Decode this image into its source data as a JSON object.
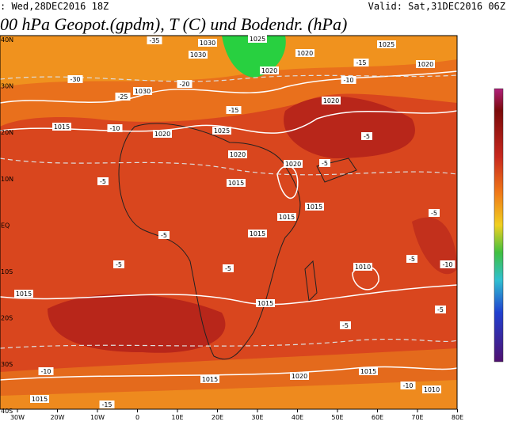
{
  "header": {
    "left": ": Wed,28DEC2016 18Z",
    "right": "Valid: Sat,31DEC2016 06Z"
  },
  "title": "00 hPa Geopot.(gpdm), T (C) und Bodendr. (hPa)",
  "lon_labels": [
    "30W",
    "20W",
    "10W",
    "0",
    "10E",
    "20E",
    "30E",
    "40E",
    "50E",
    "60E",
    "70E",
    "80E"
  ],
  "lat_labels": [
    "40N",
    "30N",
    "20N",
    "10N",
    "EQ",
    "10S",
    "20S",
    "30S",
    "40S"
  ],
  "contour_labels": [
    "1030",
    "1025",
    "1030",
    "1020",
    "1020",
    "1025",
    "1020",
    "1030",
    "1020",
    "1025",
    "1020",
    "1015",
    "1020",
    "1020",
    "1015",
    "1015",
    "1015",
    "1015",
    "1010",
    "1015",
    "1020",
    "1015",
    "1015",
    "1015",
    "1010",
    "1015",
    "-35",
    "-30",
    "-25",
    "-20",
    "-15",
    "-10",
    "-15",
    "-10",
    "-5",
    "-5",
    "-5",
    "-5",
    "-5",
    "-5",
    "-5",
    "-5",
    "-10",
    "-10",
    "-5",
    "-5",
    "-15",
    "-10"
  ]
}
